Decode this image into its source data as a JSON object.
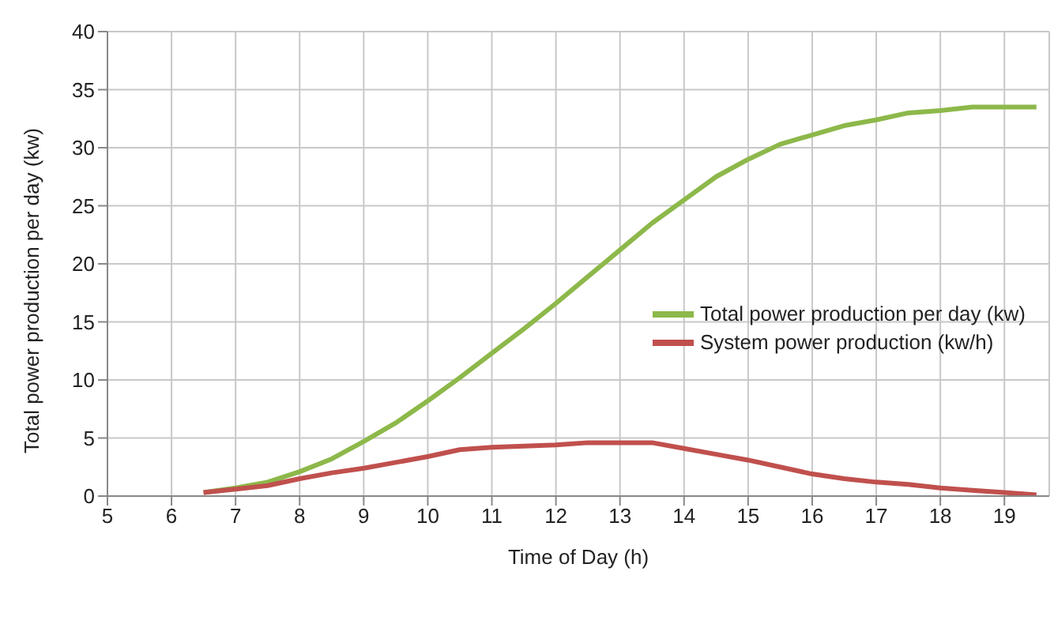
{
  "chart_data": {
    "type": "line",
    "xlabel": "Time of Day (h)",
    "ylabel": "Total power production per day (kw)",
    "x": [
      6.5,
      7,
      7.5,
      8,
      8.5,
      9,
      9.5,
      10,
      10.5,
      11,
      11.5,
      12,
      12.5,
      13,
      13.5,
      14,
      14.5,
      15,
      15.5,
      16,
      16.5,
      17,
      17.5,
      18,
      18.5,
      19,
      19.5
    ],
    "series": [
      {
        "name": "Total power production per day (kw)",
        "color": "#8db84a",
        "values": [
          0.3,
          0.7,
          1.2,
          2.1,
          3.2,
          4.7,
          6.3,
          8.2,
          10.2,
          12.3,
          14.4,
          16.6,
          18.9,
          21.2,
          23.5,
          25.5,
          27.5,
          29,
          30.3,
          31.1,
          31.9,
          32.4,
          33,
          33.2,
          33.5,
          33.5,
          33.5
        ]
      },
      {
        "name": "System power production (kw/h)",
        "color": "#c0504d",
        "values": [
          0.3,
          0.6,
          0.9,
          1.5,
          2.0,
          2.4,
          2.9,
          3.4,
          4.0,
          4.2,
          4.3,
          4.4,
          4.6,
          4.6,
          4.6,
          4.1,
          3.6,
          3.1,
          2.5,
          1.9,
          1.5,
          1.2,
          1.0,
          0.7,
          0.5,
          0.3,
          0.1
        ]
      }
    ],
    "xlim": [
      5,
      19.7
    ],
    "xticks": [
      5,
      6,
      7,
      8,
      9,
      10,
      11,
      12,
      13,
      14,
      15,
      16,
      17,
      18,
      19
    ],
    "ylim": [
      0,
      40
    ],
    "yticks": [
      0,
      5,
      10,
      15,
      20,
      25,
      30,
      35,
      40
    ],
    "grid": true,
    "legend": "right",
    "marker": "none",
    "line_style": "solid"
  }
}
